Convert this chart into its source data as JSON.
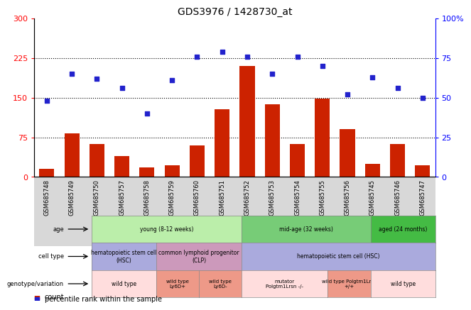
{
  "title": "GDS3976 / 1428730_at",
  "samples": [
    "GSM685748",
    "GSM685749",
    "GSM685750",
    "GSM685757",
    "GSM685758",
    "GSM685759",
    "GSM685760",
    "GSM685751",
    "GSM685752",
    "GSM685753",
    "GSM685754",
    "GSM685755",
    "GSM685756",
    "GSM685745",
    "GSM685746",
    "GSM685747"
  ],
  "bar_values": [
    15,
    83,
    62,
    40,
    18,
    22,
    60,
    128,
    210,
    137,
    62,
    148,
    90,
    25,
    63,
    22
  ],
  "scatter_values": [
    48,
    65,
    62,
    56,
    40,
    61,
    76,
    79,
    76,
    65,
    76,
    70,
    52,
    63,
    56,
    50
  ],
  "ylim_left": [
    0,
    300
  ],
  "ylim_right": [
    0,
    100
  ],
  "yticks_left": [
    0,
    75,
    150,
    225,
    300
  ],
  "yticks_right": [
    0,
    25,
    50,
    75,
    100
  ],
  "bar_color": "#cc2200",
  "scatter_color": "#2222cc",
  "age_groups": [
    {
      "label": "young (8-12 weeks)",
      "start": 0,
      "end": 7,
      "color": "#bbeeaa"
    },
    {
      "label": "mid-age (32 weeks)",
      "start": 7,
      "end": 13,
      "color": "#77cc77"
    },
    {
      "label": "aged (24 months)",
      "start": 13,
      "end": 16,
      "color": "#44bb44"
    }
  ],
  "cell_type_groups": [
    {
      "label": "hematopoietic stem cell\n(HSC)",
      "start": 0,
      "end": 3,
      "color": "#aaaadd"
    },
    {
      "label": "common lymphoid progenitor\n(CLP)",
      "start": 3,
      "end": 7,
      "color": "#cc99bb"
    },
    {
      "label": "hematopoietic stem cell (HSC)",
      "start": 7,
      "end": 16,
      "color": "#aaaadd"
    }
  ],
  "genotype_groups": [
    {
      "label": "wild type",
      "start": 0,
      "end": 3,
      "color": "#ffdddd"
    },
    {
      "label": "wild type\nLy6D+",
      "start": 3,
      "end": 5,
      "color": "#ee9988"
    },
    {
      "label": "wild type\nLy6D-",
      "start": 5,
      "end": 7,
      "color": "#ee9988"
    },
    {
      "label": "mutator\nPolgtm1Lrsn -/-",
      "start": 7,
      "end": 11,
      "color": "#ffdddd"
    },
    {
      "label": "wild type Polgtm1Lrsn\n+/+",
      "start": 11,
      "end": 13,
      "color": "#ee9988"
    },
    {
      "label": "wild type",
      "start": 13,
      "end": 16,
      "color": "#ffdddd"
    }
  ],
  "n_samples": 16
}
